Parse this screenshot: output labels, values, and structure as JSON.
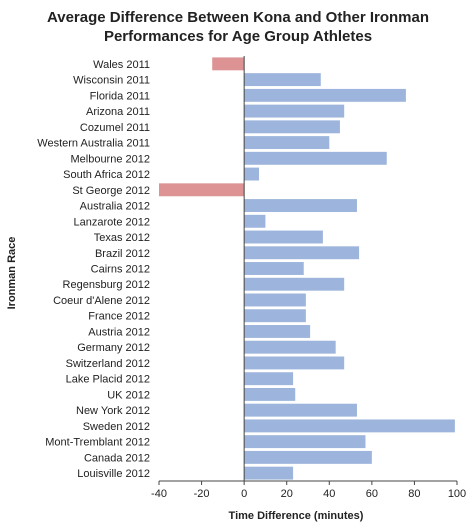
{
  "chart_data": {
    "type": "bar",
    "orientation": "horizontal",
    "title_lines": [
      "Average Difference Between Kona and Other Ironman",
      "Performances for Age Group Athletes"
    ],
    "xlabel": "Time Difference (minutes)",
    "ylabel": "Ironman Race",
    "xlim": [
      -40,
      100
    ],
    "xticks": [
      -40,
      -20,
      0,
      20,
      40,
      60,
      80,
      100
    ],
    "grid": false,
    "legend": "none",
    "categories": [
      "Wales 2011",
      "Wisconsin 2011",
      "Florida 2011",
      "Arizona 2011",
      "Cozumel 2011",
      "Western Australia 2011",
      "Melbourne 2012",
      "South Africa 2012",
      "St George 2012",
      "Australia 2012",
      "Lanzarote 2012",
      "Texas 2012",
      "Brazil 2012",
      "Cairns 2012",
      "Regensburg 2012",
      "Coeur d'Alene 2012",
      "France 2012",
      "Austria 2012",
      "Germany 2012",
      "Switzerland 2012",
      "Lake Placid 2012",
      "UK 2012",
      "New York 2012",
      "Sweden 2012",
      "Mont-Tremblant 2012",
      "Canada 2012",
      "Louisville 2012"
    ],
    "values": [
      -15,
      36,
      76,
      47,
      45,
      40,
      67,
      7,
      -40,
      53,
      10,
      37,
      54,
      28,
      47,
      29,
      29,
      31,
      43,
      47,
      23,
      24,
      53,
      99,
      57,
      60,
      23
    ],
    "colors": {
      "positive": "#9db5dc",
      "negative": "#dd9393",
      "axis": "#444444",
      "text": "#222222"
    }
  }
}
